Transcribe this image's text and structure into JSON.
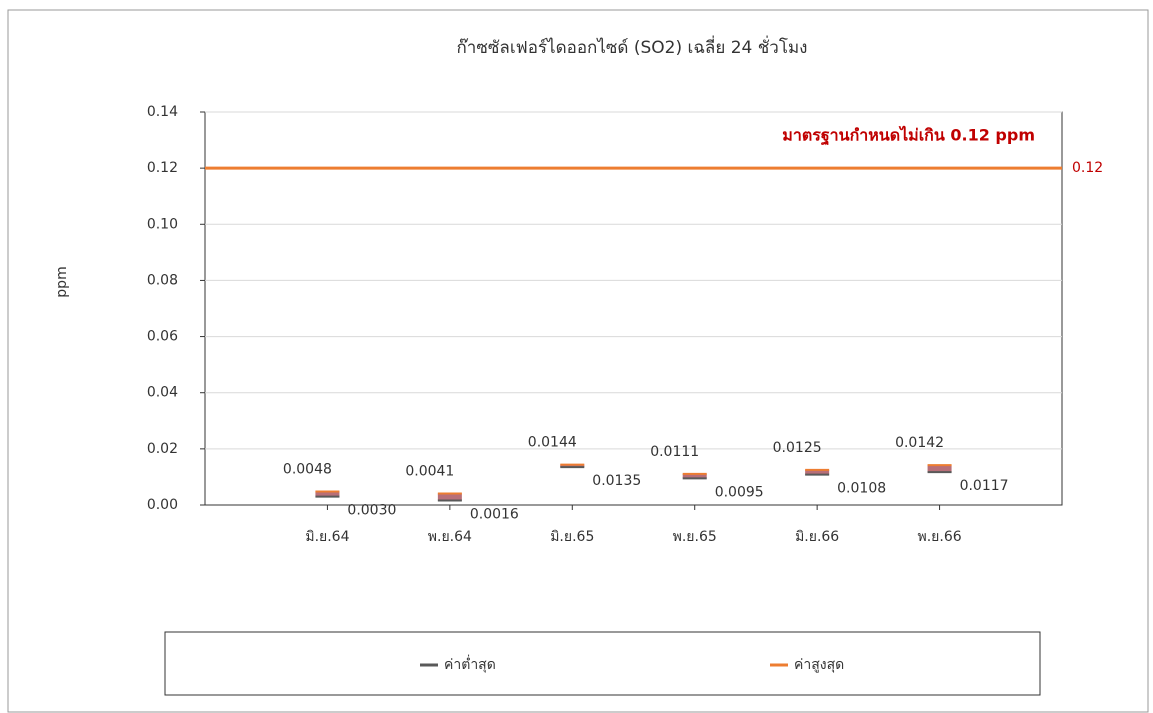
{
  "chart_data": {
    "type": "hilo",
    "title": "ก๊าซซัลเฟอร์ไดออกไซด์ (SO2) เฉลี่ย 24 ชั่วโมง",
    "y_label": "ppm",
    "categories": [
      "มิ.ย.64",
      "พ.ย.64",
      "มิ.ย.65",
      "พ.ย.65",
      "มิ.ย.66",
      "พ.ย.66"
    ],
    "series": [
      {
        "name": "ค่าต่ำสุด",
        "color": "#595959",
        "values": [
          0.003,
          0.0016,
          0.0135,
          0.0095,
          0.0108,
          0.0117
        ],
        "value_labels": [
          "0.0030",
          "0.0016",
          "0.0135",
          "0.0095",
          "0.0108",
          "0.0117"
        ]
      },
      {
        "name": "ค่าสูงสุด",
        "color": "#ed7d31",
        "values": [
          0.0048,
          0.0041,
          0.0144,
          0.0111,
          0.0125,
          0.0142
        ],
        "value_labels": [
          "0.0048",
          "0.0041",
          "0.0144",
          "0.0111",
          "0.0125",
          "0.0142"
        ]
      }
    ],
    "hilo_color": "#b86f78",
    "reference_line": {
      "value": 0.12,
      "label": "มาตรฐานกำหนดไม่เกิน 0.12 ppm",
      "color": "#ed7d31",
      "label_color": "#c00000"
    },
    "ylim": [
      0,
      0.14
    ],
    "yticks": [
      {
        "value": 0,
        "label": "0.00"
      },
      0.02,
      0.04,
      0.06,
      0.08,
      {
        "value": 0.1,
        "label": "0.10"
      },
      0.12,
      0.14
    ],
    "grid": true,
    "legend": "bottom"
  }
}
